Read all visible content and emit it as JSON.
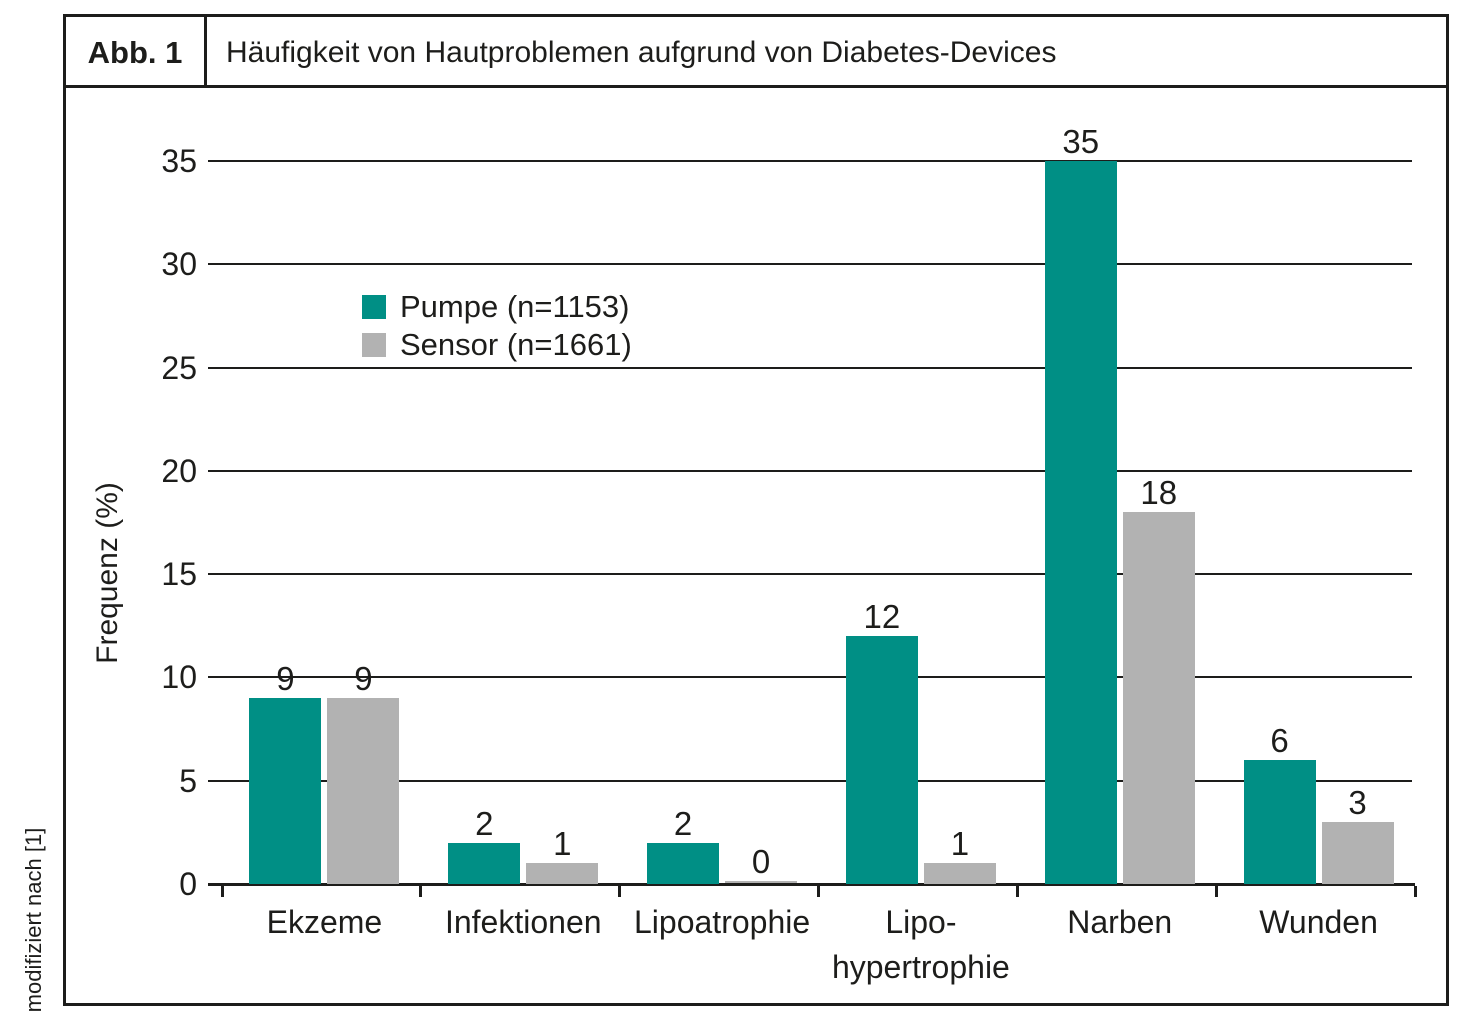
{
  "figure": {
    "label": "Abb. 1",
    "title": "Häufigkeit von Hautproblemen aufgrund von Diabetes-Devices"
  },
  "footnote": "modifiziert nach [1]",
  "chart_data": {
    "type": "bar",
    "title": "Häufigkeit von Hautproblemen aufgrund von Diabetes-Devices",
    "categories": [
      "Ekzeme",
      "Infektionen",
      "Lipoatrophie",
      "Lipo-\nhypertrophie",
      "Narben",
      "Wunden"
    ],
    "series": [
      {
        "name": "Pumpe (n=1153)",
        "color": "#008F85",
        "values": [
          9,
          2,
          2,
          12,
          35,
          6
        ]
      },
      {
        "name": "Sensor (n=1661)",
        "color": "#B2B2B2",
        "values": [
          9,
          1,
          0,
          1,
          18,
          3
        ]
      }
    ],
    "xlabel": "",
    "ylabel": "Frequenz (%)",
    "ylim": [
      0,
      35
    ],
    "ytick_step": 5,
    "grid": true,
    "legend_position": "upper-left-inside"
  }
}
